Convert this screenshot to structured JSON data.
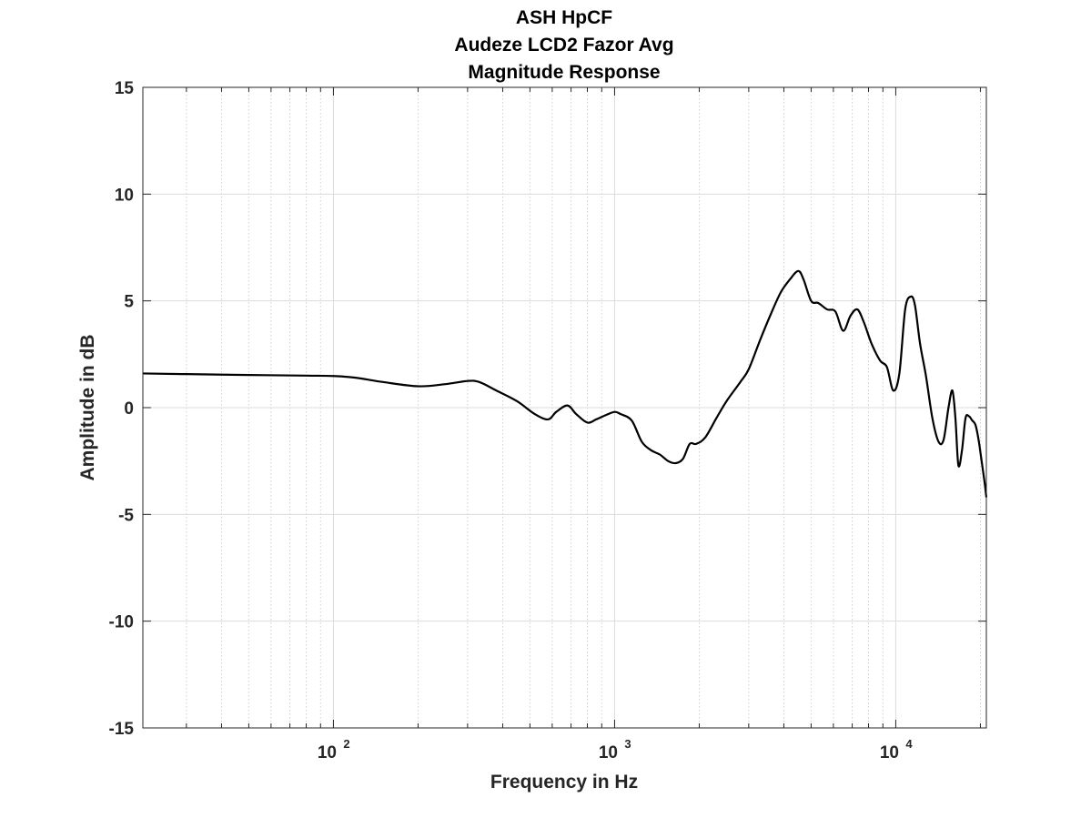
{
  "chart_data": {
    "type": "line",
    "title": [
      "ASH HpCF",
      "Audeze LCD2 Fazor Avg",
      "Magnitude Response"
    ],
    "xlabel": "Frequency in Hz",
    "ylabel": "Amplitude in dB",
    "x_scale": "log",
    "xlim": [
      21,
      21000
    ],
    "ylim": [
      -15,
      15
    ],
    "x_ticks": [
      {
        "value": 100,
        "base": "10",
        "exp": "2"
      },
      {
        "value": 1000,
        "base": "10",
        "exp": "3"
      },
      {
        "value": 10000,
        "base": "10",
        "exp": "4"
      }
    ],
    "y_ticks": [
      -15,
      -10,
      -5,
      0,
      5,
      10,
      15
    ],
    "grid": true,
    "minor_grid_x": true,
    "line_color": "#000000",
    "series": [
      {
        "x": [
          21,
          30,
          50,
          80,
          100,
          120,
          150,
          200,
          250,
          300,
          330,
          380,
          450,
          520,
          580,
          620,
          680,
          730,
          800,
          860,
          930,
          1000,
          1050,
          1150,
          1250,
          1350,
          1450,
          1550,
          1650,
          1750,
          1850,
          1950,
          2100,
          2300,
          2500,
          2800,
          3000,
          3300,
          3600,
          3900,
          4200,
          4500,
          4700,
          5000,
          5300,
          5700,
          6100,
          6500,
          6900,
          7300,
          7700,
          8200,
          8800,
          9300,
          9800,
          10300,
          10800,
          11300,
          11700,
          12200,
          12800,
          13500,
          14200,
          14800,
          15400,
          15900,
          16300,
          16700,
          17200,
          17700,
          18200,
          18700,
          19200,
          19700,
          20200,
          20700,
          21000
        ],
        "y": [
          1.6,
          1.57,
          1.53,
          1.5,
          1.48,
          1.4,
          1.2,
          1.0,
          1.1,
          1.25,
          1.2,
          0.8,
          0.3,
          -0.3,
          -0.55,
          -0.2,
          0.1,
          -0.3,
          -0.7,
          -0.55,
          -0.35,
          -0.2,
          -0.3,
          -0.6,
          -1.6,
          -2.0,
          -2.2,
          -2.5,
          -2.6,
          -2.4,
          -1.7,
          -1.7,
          -1.4,
          -0.5,
          0.3,
          1.2,
          1.8,
          3.2,
          4.4,
          5.4,
          6.0,
          6.4,
          6.0,
          5.0,
          4.9,
          4.6,
          4.5,
          3.6,
          4.3,
          4.6,
          4.0,
          3.0,
          2.2,
          1.9,
          0.8,
          1.6,
          4.6,
          5.2,
          4.8,
          3.0,
          1.5,
          -0.5,
          -1.6,
          -1.5,
          0.0,
          0.8,
          -0.5,
          -2.7,
          -2.0,
          -0.5,
          -0.4,
          -0.6,
          -0.8,
          -1.5,
          -2.5,
          -3.5,
          -4.2
        ]
      }
    ]
  }
}
